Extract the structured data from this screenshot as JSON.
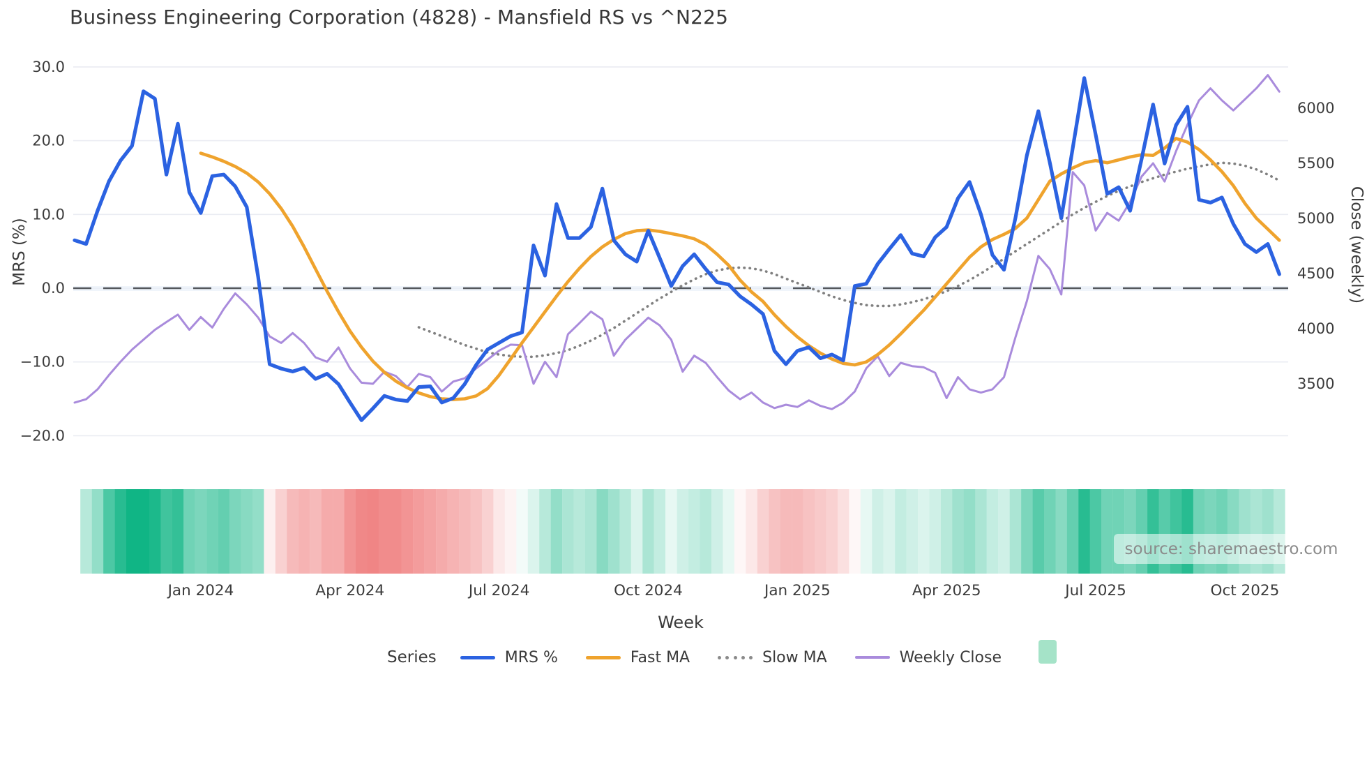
{
  "title": "Business Engineering Corporation (4828) - Mansfield RS vs ^N225",
  "axes": {
    "left_label": "MRS (%)",
    "right_label": "Close (weekly)",
    "x_label": "Week",
    "left_ticks": [
      "30.0",
      "20.0",
      "10.0",
      "0.0",
      "−10.0",
      "−20.0"
    ],
    "left_tick_values": [
      30,
      20,
      10,
      0,
      -10,
      -20
    ],
    "right_ticks": [
      "6000",
      "5500",
      "5000",
      "4500",
      "4000",
      "3500"
    ],
    "right_tick_values": [
      6000,
      5500,
      5000,
      4500,
      4000,
      3500
    ]
  },
  "legend": {
    "series_title": "Series",
    "items": [
      {
        "label": "MRS %",
        "color": "#2b62e1",
        "style": "line"
      },
      {
        "label": "Fast MA",
        "color": "#efa32d",
        "style": "line"
      },
      {
        "label": "Slow MA",
        "color": "#8a8a8a",
        "style": "dotted"
      },
      {
        "label": "Weekly Close",
        "color": "#a98bdc",
        "style": "line"
      },
      {
        "label": "",
        "color": "#a5e3c8",
        "style": "swatch"
      }
    ]
  },
  "watermark": "source: sharemaestro.com",
  "colors": {
    "mrs": "#2b62e1",
    "fast": "#efa32d",
    "slow": "#808080",
    "close": "#a98bdc",
    "grid": "#eaecf2",
    "zero_line": "#53575c",
    "heat_green": "#10b585",
    "heat_red": "#ec6666",
    "tick_text": "#3b3b3b"
  },
  "chart_data": {
    "type": "line",
    "title": "Business Engineering Corporation (4828) - Mansfield RS vs ^N225",
    "xlabel": "Week",
    "ylabel_left": "MRS (%)",
    "ylabel_right": "Close (weekly)",
    "n_weeks": 106,
    "x_start": "2023-11",
    "x_tick_weeks": [
      11,
      24,
      37,
      50,
      63,
      76,
      89,
      102
    ],
    "x_tick_labels": [
      "Jan 2024",
      "Apr 2024",
      "Jul 2024",
      "Oct 2024",
      "Jan 2025",
      "Apr 2025",
      "Jul 2025",
      "Oct 2025"
    ],
    "left_axis_range": [
      -20,
      30
    ],
    "right_axis_range": [
      3025,
      6375
    ],
    "grid": true,
    "legend_position": "bottom",
    "series": [
      {
        "name": "MRS %",
        "axis": "left",
        "values": [
          6.5,
          6.0,
          10.5,
          14.5,
          17.3,
          19.3,
          26.7,
          25.7,
          15.4,
          22.3,
          13.0,
          10.2,
          15.2,
          15.4,
          13.8,
          11.0,
          1.5,
          -10.3,
          -10.9,
          -11.3,
          -10.8,
          -12.3,
          -11.6,
          -13.0,
          -15.5,
          -17.9,
          -16.3,
          -14.6,
          -15.1,
          -15.3,
          -13.4,
          -13.3,
          -15.5,
          -14.9,
          -13.0,
          -10.4,
          -8.3,
          -7.4,
          -6.5,
          -6.0,
          5.8,
          1.7,
          11.4,
          6.8,
          6.8,
          8.3,
          13.5,
          6.5,
          4.6,
          3.6,
          7.8,
          4.1,
          0.3,
          3.0,
          4.6,
          2.6,
          0.8,
          0.5,
          -1.1,
          -2.2,
          -3.5,
          -8.5,
          -10.3,
          -8.5,
          -8.0,
          -9.5,
          -9.0,
          -9.8,
          0.3,
          0.6,
          3.3,
          5.3,
          7.2,
          4.7,
          4.3,
          6.9,
          8.3,
          12.2,
          14.4,
          10.0,
          4.5,
          2.5,
          9.5,
          18.0,
          24.0,
          17.0,
          9.5,
          19.0,
          28.5,
          20.8,
          12.8,
          13.7,
          10.5,
          17.5,
          24.9,
          16.9,
          22.1,
          24.6,
          12.0,
          11.6,
          12.3,
          8.7,
          6.0,
          4.9,
          6.0,
          1.9
        ]
      },
      {
        "name": "Fast MA",
        "axis": "left",
        "start_week": 11,
        "values": [
          18.3,
          17.8,
          17.2,
          16.5,
          15.6,
          14.4,
          12.8,
          10.8,
          8.4,
          5.6,
          2.6,
          -0.4,
          -3.2,
          -5.8,
          -8.0,
          -9.9,
          -11.4,
          -12.6,
          -13.5,
          -14.2,
          -14.7,
          -15.0,
          -15.1,
          -15.0,
          -14.6,
          -13.6,
          -11.8,
          -9.6,
          -7.4,
          -5.3,
          -3.2,
          -1.1,
          0.9,
          2.7,
          4.3,
          5.6,
          6.6,
          7.4,
          7.8,
          7.9,
          7.7,
          7.4,
          7.1,
          6.7,
          5.9,
          4.6,
          3.1,
          1.1,
          -0.5,
          -1.8,
          -3.6,
          -5.2,
          -6.6,
          -7.8,
          -8.8,
          -9.6,
          -10.2,
          -10.4,
          -10.0,
          -9.0,
          -7.7,
          -6.2,
          -4.6,
          -3.0,
          -1.2,
          0.6,
          2.4,
          4.2,
          5.6,
          6.6,
          7.3,
          8.1,
          9.5,
          12.0,
          14.5,
          15.5,
          16.3,
          17.0,
          17.3,
          17.0,
          17.4,
          17.8,
          18.1,
          18.0,
          19.0,
          20.3,
          19.8,
          18.8,
          17.4,
          15.8,
          13.9,
          11.5,
          9.5,
          8.0,
          6.5
        ]
      },
      {
        "name": "Slow MA",
        "axis": "left",
        "start_week": 30,
        "values": [
          -5.3,
          -5.9,
          -6.5,
          -7.1,
          -7.7,
          -8.2,
          -8.7,
          -9.0,
          -9.2,
          -9.3,
          -9.3,
          -9.1,
          -8.8,
          -8.4,
          -7.8,
          -7.1,
          -6.3,
          -5.4,
          -4.4,
          -3.4,
          -2.4,
          -1.4,
          -0.5,
          0.4,
          1.2,
          1.9,
          2.4,
          2.7,
          2.8,
          2.7,
          2.4,
          1.9,
          1.3,
          0.7,
          0.1,
          -0.5,
          -1.1,
          -1.6,
          -2.0,
          -2.3,
          -2.4,
          -2.4,
          -2.2,
          -1.9,
          -1.5,
          -1.0,
          -0.4,
          0.3,
          1.1,
          2.0,
          3.0,
          4.0,
          5.0,
          6.0,
          7.0,
          8.0,
          9.0,
          10.0,
          10.9,
          11.7,
          12.5,
          13.2,
          13.8,
          14.4,
          14.9,
          15.4,
          15.8,
          16.2,
          16.5,
          16.8,
          17.0,
          16.9,
          16.6,
          16.1,
          15.4,
          14.6
        ]
      },
      {
        "name": "Weekly Close",
        "axis": "right",
        "values": [
          3330,
          3360,
          3450,
          3580,
          3700,
          3810,
          3900,
          3990,
          4060,
          4127,
          3990,
          4105,
          4010,
          4180,
          4320,
          4220,
          4100,
          3930,
          3870,
          3960,
          3870,
          3740,
          3700,
          3830,
          3640,
          3510,
          3500,
          3610,
          3570,
          3470,
          3590,
          3560,
          3430,
          3520,
          3550,
          3640,
          3720,
          3800,
          3855,
          3850,
          3500,
          3700,
          3560,
          3950,
          4050,
          4155,
          4085,
          3755,
          3900,
          4000,
          4100,
          4030,
          3900,
          3610,
          3755,
          3690,
          3560,
          3440,
          3360,
          3420,
          3330,
          3280,
          3310,
          3290,
          3350,
          3300,
          3270,
          3330,
          3430,
          3640,
          3750,
          3570,
          3690,
          3660,
          3650,
          3600,
          3370,
          3560,
          3450,
          3420,
          3450,
          3560,
          3920,
          4250,
          4660,
          4540,
          4310,
          5420,
          5300,
          4890,
          5050,
          4980,
          5150,
          5380,
          5500,
          5335,
          5610,
          5850,
          6070,
          6180,
          6070,
          5980,
          6080,
          6180,
          6300,
          6150
        ]
      }
    ],
    "heat_strip": {
      "name": "weekly heat band",
      "values": [
        0.22,
        0.3,
        0.45,
        0.75,
        0.9,
        1.0,
        1.0,
        0.95,
        0.8,
        0.85,
        0.6,
        0.55,
        0.6,
        0.65,
        0.55,
        0.5,
        0.45,
        -0.1,
        -0.3,
        -0.45,
        -0.5,
        -0.45,
        -0.55,
        -0.55,
        -0.7,
        -0.78,
        -0.8,
        -0.75,
        -0.75,
        -0.7,
        -0.65,
        -0.6,
        -0.55,
        -0.5,
        -0.45,
        -0.4,
        -0.3,
        -0.15,
        -0.08,
        0.05,
        0.15,
        0.3,
        0.45,
        0.35,
        0.3,
        0.35,
        0.5,
        0.4,
        0.3,
        0.15,
        0.35,
        0.25,
        0.1,
        0.2,
        0.25,
        0.3,
        0.2,
        0.1,
        -0.05,
        -0.15,
        -0.3,
        -0.4,
        -0.45,
        -0.45,
        -0.4,
        -0.35,
        -0.3,
        -0.2,
        -0.05,
        0.1,
        0.2,
        0.15,
        0.25,
        0.2,
        0.15,
        0.2,
        0.3,
        0.4,
        0.45,
        0.35,
        0.25,
        0.2,
        0.35,
        0.55,
        0.7,
        0.6,
        0.5,
        0.65,
        0.9,
        0.75,
        0.6,
        0.6,
        0.55,
        0.65,
        0.85,
        0.7,
        0.8,
        0.9,
        0.6,
        0.55,
        0.6,
        0.5,
        0.4,
        0.35,
        0.4,
        0.3
      ]
    }
  }
}
